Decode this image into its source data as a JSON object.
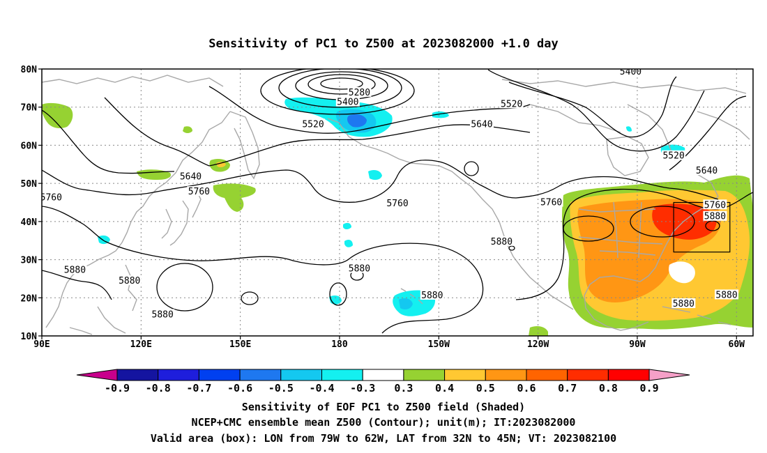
{
  "title": "Sensitivity of PC1 to Z500 at 2023082000 +1.0 day",
  "map": {
    "lon_range": [
      90,
      305
    ],
    "lat_range": [
      10,
      80
    ],
    "lat_ticks": [
      {
        "value": 80,
        "label": "80N"
      },
      {
        "value": 70,
        "label": "70N"
      },
      {
        "value": 60,
        "label": "60N"
      },
      {
        "value": 50,
        "label": "50N"
      },
      {
        "value": 40,
        "label": "40N"
      },
      {
        "value": 30,
        "label": "30N"
      },
      {
        "value": 20,
        "label": "20N"
      },
      {
        "value": 10,
        "label": "10N"
      }
    ],
    "lon_ticks": [
      {
        "value": 90,
        "label": "90E"
      },
      {
        "value": 120,
        "label": "120E"
      },
      {
        "value": 150,
        "label": "150E"
      },
      {
        "value": 180,
        "label": "180"
      },
      {
        "value": 210,
        "label": "150W"
      },
      {
        "value": 240,
        "label": "120W"
      },
      {
        "value": 270,
        "label": "90W"
      },
      {
        "value": 300,
        "label": "60W"
      }
    ],
    "grid": "dotted",
    "contour_labels": [
      {
        "text": "5280",
        "lon": 186,
        "lat": 73.8
      },
      {
        "text": "5400",
        "lon": 182.5,
        "lat": 71.3
      },
      {
        "text": "5400",
        "lon": 268,
        "lat": 79.3
      },
      {
        "text": "5520",
        "lon": 172,
        "lat": 65.5
      },
      {
        "text": "5520",
        "lon": 232,
        "lat": 70.8
      },
      {
        "text": "5520",
        "lon": 281,
        "lat": 57.2
      },
      {
        "text": "5640",
        "lon": 223,
        "lat": 65.5
      },
      {
        "text": "5640",
        "lon": 135,
        "lat": 51.8
      },
      {
        "text": "5640",
        "lon": 291,
        "lat": 53.3
      },
      {
        "text": "5760",
        "lon": 137.5,
        "lat": 47.8
      },
      {
        "text": "5760",
        "lon": 92.8,
        "lat": 46.3
      },
      {
        "text": "5760",
        "lon": 197.5,
        "lat": 44.7
      },
      {
        "text": "5760",
        "lon": 244,
        "lat": 45.0
      },
      {
        "text": "5760",
        "lon": 293.5,
        "lat": 44.3
      },
      {
        "text": "5880",
        "lon": 293.5,
        "lat": 41.3
      },
      {
        "text": "5880",
        "lon": 229,
        "lat": 34.7
      },
      {
        "text": "5880",
        "lon": 186,
        "lat": 27.6
      },
      {
        "text": "5880",
        "lon": 100,
        "lat": 27.3
      },
      {
        "text": "5880",
        "lon": 116.5,
        "lat": 24.4
      },
      {
        "text": "5880",
        "lon": 208,
        "lat": 20.6
      },
      {
        "text": "5880",
        "lon": 284,
        "lat": 18.4
      },
      {
        "text": "5880",
        "lon": 297,
        "lat": 20.7
      },
      {
        "text": "5880",
        "lon": 126.5,
        "lat": 15.6
      }
    ],
    "valid_box": {
      "lon_min": 281,
      "lon_max": 298,
      "lat_min": 32,
      "lat_max": 45
    }
  },
  "colorbar": {
    "levels": [
      "-0.9",
      "-0.8",
      "-0.7",
      "-0.6",
      "-0.5",
      "-0.4",
      "-0.3",
      "0.3",
      "0.4",
      "0.5",
      "0.6",
      "0.7",
      "0.8",
      "0.9"
    ],
    "colors": [
      "#c8008c",
      "#1414a0",
      "#1e1edc",
      "#0040f0",
      "#1e78f0",
      "#14c8f0",
      "#14f0f0",
      "#ffffff",
      "#96d232",
      "#ffc832",
      "#ff9614",
      "#ff6400",
      "#ff2d00",
      "#ff0000",
      "#f5a0c8"
    ]
  },
  "shading_colors": {
    "positive_low": "#96d232",
    "positive_mid": "#ffc832",
    "positive_high": "#ff9614",
    "positive_max": "#ff2d00",
    "negative_low": "#14f0f0",
    "negative_mid": "#14c8f0",
    "negative_high": "#1e78f0"
  },
  "footer": {
    "line1": "Sensitivity of EOF PC1 to Z500 field (Shaded)",
    "line2": "NCEP+CMC ensemble mean Z500 (Contour); unit(m); IT:2023082000",
    "line3": "Valid area (box): LON from 79W to 62W, LAT from 32N to 45N; VT: 2023082100"
  }
}
